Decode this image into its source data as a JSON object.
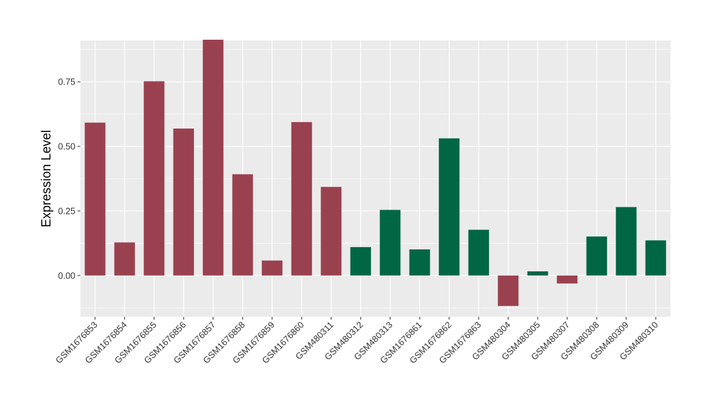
{
  "chart_data": {
    "type": "bar",
    "title": "",
    "xlabel": "",
    "ylabel": "Expression Level",
    "ylim": [
      -0.16,
      0.91
    ],
    "yticks": [
      0.0,
      0.25,
      0.5,
      0.75
    ],
    "ytick_labels": [
      "0.00",
      "0.25",
      "0.50",
      "0.75"
    ],
    "grid": true,
    "legend": "none",
    "colors": {
      "group1": "#9a4150",
      "group2": "#006644",
      "panel": "#ebebeb",
      "grid": "#ffffff"
    },
    "categories": [
      "GSM1676853",
      "GSM1676854",
      "GSM1676855",
      "GSM1676856",
      "GSM1676857",
      "GSM1676858",
      "GSM1676859",
      "GSM1676860",
      "GSM480311",
      "GSM480312",
      "GSM480313",
      "GSM1676861",
      "GSM1676862",
      "GSM1676863",
      "GSM480304",
      "GSM480305",
      "GSM480307",
      "GSM480308",
      "GSM480309",
      "GSM480310"
    ],
    "values": [
      0.592,
      0.128,
      0.752,
      0.569,
      0.913,
      0.392,
      0.058,
      0.594,
      0.343,
      0.11,
      0.254,
      0.101,
      0.531,
      0.177,
      -0.118,
      0.016,
      -0.031,
      0.151,
      0.265,
      0.136
    ],
    "groups": [
      1,
      1,
      1,
      1,
      1,
      1,
      1,
      1,
      1,
      2,
      2,
      2,
      2,
      2,
      1,
      2,
      1,
      2,
      2,
      2
    ]
  }
}
